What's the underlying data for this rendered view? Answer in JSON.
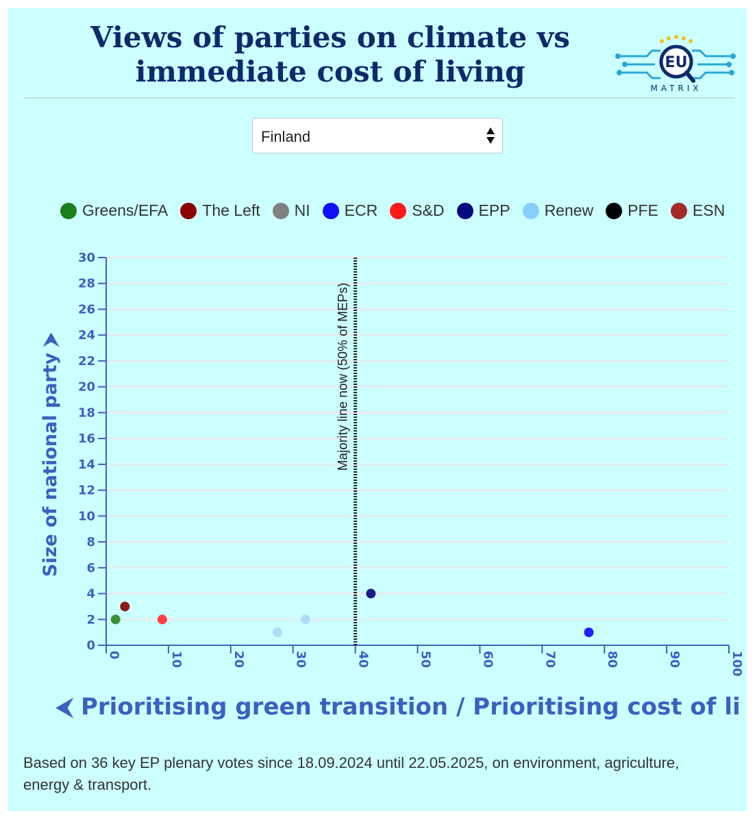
{
  "header": {
    "title": "Views of parties on climate vs immediate cost of living",
    "logo_text": "EU",
    "logo_subtext": "MATRIX"
  },
  "selector": {
    "selected": "Finland"
  },
  "legend": [
    {
      "name": "Greens/EFA",
      "color": "#1a7f1a"
    },
    {
      "name": "The Left",
      "color": "#8b0000"
    },
    {
      "name": "NI",
      "color": "#808080"
    },
    {
      "name": "ECR",
      "color": "#1010ff"
    },
    {
      "name": "S&D",
      "color": "#ff1a1a"
    },
    {
      "name": "EPP",
      "color": "#0a0a80"
    },
    {
      "name": "Renew",
      "color": "#87cefa"
    },
    {
      "name": "PFE",
      "color": "#000000"
    },
    {
      "name": "ESN",
      "color": "#a52a2a"
    }
  ],
  "chart_data": {
    "type": "scatter",
    "xlabel": "⮜ Prioritising green transition / Prioritising cost of living ⮞",
    "ylabel": "Size of national party ⮞",
    "xlim": [
      0,
      100
    ],
    "ylim": [
      0,
      30
    ],
    "x_ticks": [
      0,
      10,
      20,
      30,
      40,
      50,
      60,
      70,
      80,
      90,
      100
    ],
    "y_ticks": [
      0,
      2,
      4,
      6,
      8,
      10,
      12,
      14,
      16,
      18,
      20,
      22,
      24,
      26,
      28,
      30
    ],
    "grid": "horizontal",
    "majority_line": {
      "x": 40,
      "label": "Majority line now (50% of MEPs)"
    },
    "points": [
      {
        "group": "Greens/EFA",
        "x": 1.5,
        "y": 2,
        "color": "#3a8f3a"
      },
      {
        "group": "The Left",
        "x": 3,
        "y": 3,
        "color": "#8b1a1a"
      },
      {
        "group": "S&D",
        "x": 9,
        "y": 2,
        "color": "#ff4040"
      },
      {
        "group": "Renew",
        "x": 27.5,
        "y": 1,
        "color": "#aedcf7"
      },
      {
        "group": "Renew",
        "x": 32,
        "y": 2,
        "color": "#aedcf7"
      },
      {
        "group": "EPP",
        "x": 42.5,
        "y": 4,
        "color": "#1c1c8a"
      },
      {
        "group": "ECR",
        "x": 77.5,
        "y": 1,
        "color": "#2020ff"
      }
    ]
  },
  "footnote": "Based on 36 key EP plenary votes since 18.09.2024 until 22.05.2025, on environment, agriculture, energy & transport."
}
